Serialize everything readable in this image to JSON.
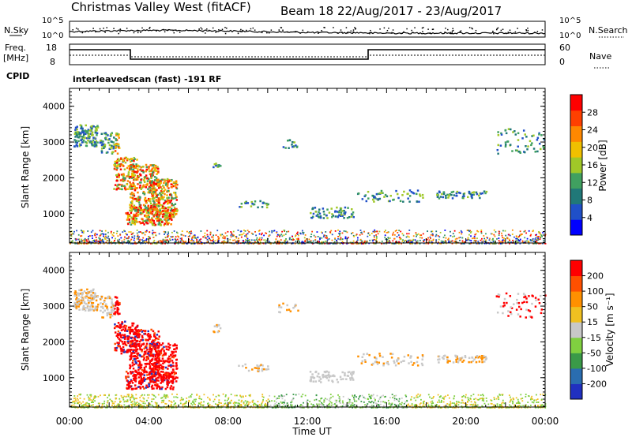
{
  "header": {
    "station": "Christmas Valley West (fitACF)",
    "beam_date": "Beam 18 22/Aug/2017 - 23/Aug/2017"
  },
  "noise_panel": {
    "left_label": "N.Sky",
    "right_label": "N.Search",
    "ticks": [
      "10^5",
      "10^0"
    ]
  },
  "freq_panel": {
    "left_label_1": "Freq.",
    "left_label_2": "[MHz]",
    "left_ticks": [
      "18",
      "8"
    ],
    "right_label": "Nave",
    "right_ticks": [
      "60",
      "0"
    ],
    "cpid_label": "CPID",
    "cpid_text": "interleavedscan (fast) -191 RF"
  },
  "chart_data": [
    {
      "type": "heatmap",
      "name": "power",
      "ylabel": "Slant Range [km]",
      "yticks": [
        "4000",
        "3000",
        "2000",
        "1000"
      ],
      "ylim": [
        180,
        4500
      ],
      "colorbar_label": "Power [dB]",
      "colorbar_ticks": [
        "28",
        "24",
        "20",
        "16",
        "12",
        "8",
        "4"
      ],
      "colormap": [
        "#0000ff",
        "#2050c8",
        "#207878",
        "#40a060",
        "#a0c828",
        "#f0c000",
        "#ff8800",
        "#ff4000",
        "#ff0000"
      ]
    },
    {
      "type": "heatmap",
      "name": "velocity",
      "ylabel": "Slant Range [km]",
      "yticks": [
        "4000",
        "3000",
        "2000",
        "1000"
      ],
      "ylim": [
        180,
        4500
      ],
      "colorbar_label": "Velocity [m s⁻¹]",
      "colorbar_ticks": [
        "200",
        "100",
        "50",
        "15",
        "-15",
        "-50",
        "-100",
        "-200"
      ],
      "colormap": [
        "#2030c0",
        "#2a6db0",
        "#3a9a48",
        "#80d040",
        "#c8c8c8",
        "#f0c020",
        "#ff9000",
        "#ff5000",
        "#ff0000"
      ]
    }
  ],
  "time_axis": {
    "ticks": [
      "00:00",
      "04:00",
      "08:00",
      "12:00",
      "16:00",
      "20:00",
      "00:00"
    ],
    "label": "Time UT"
  }
}
